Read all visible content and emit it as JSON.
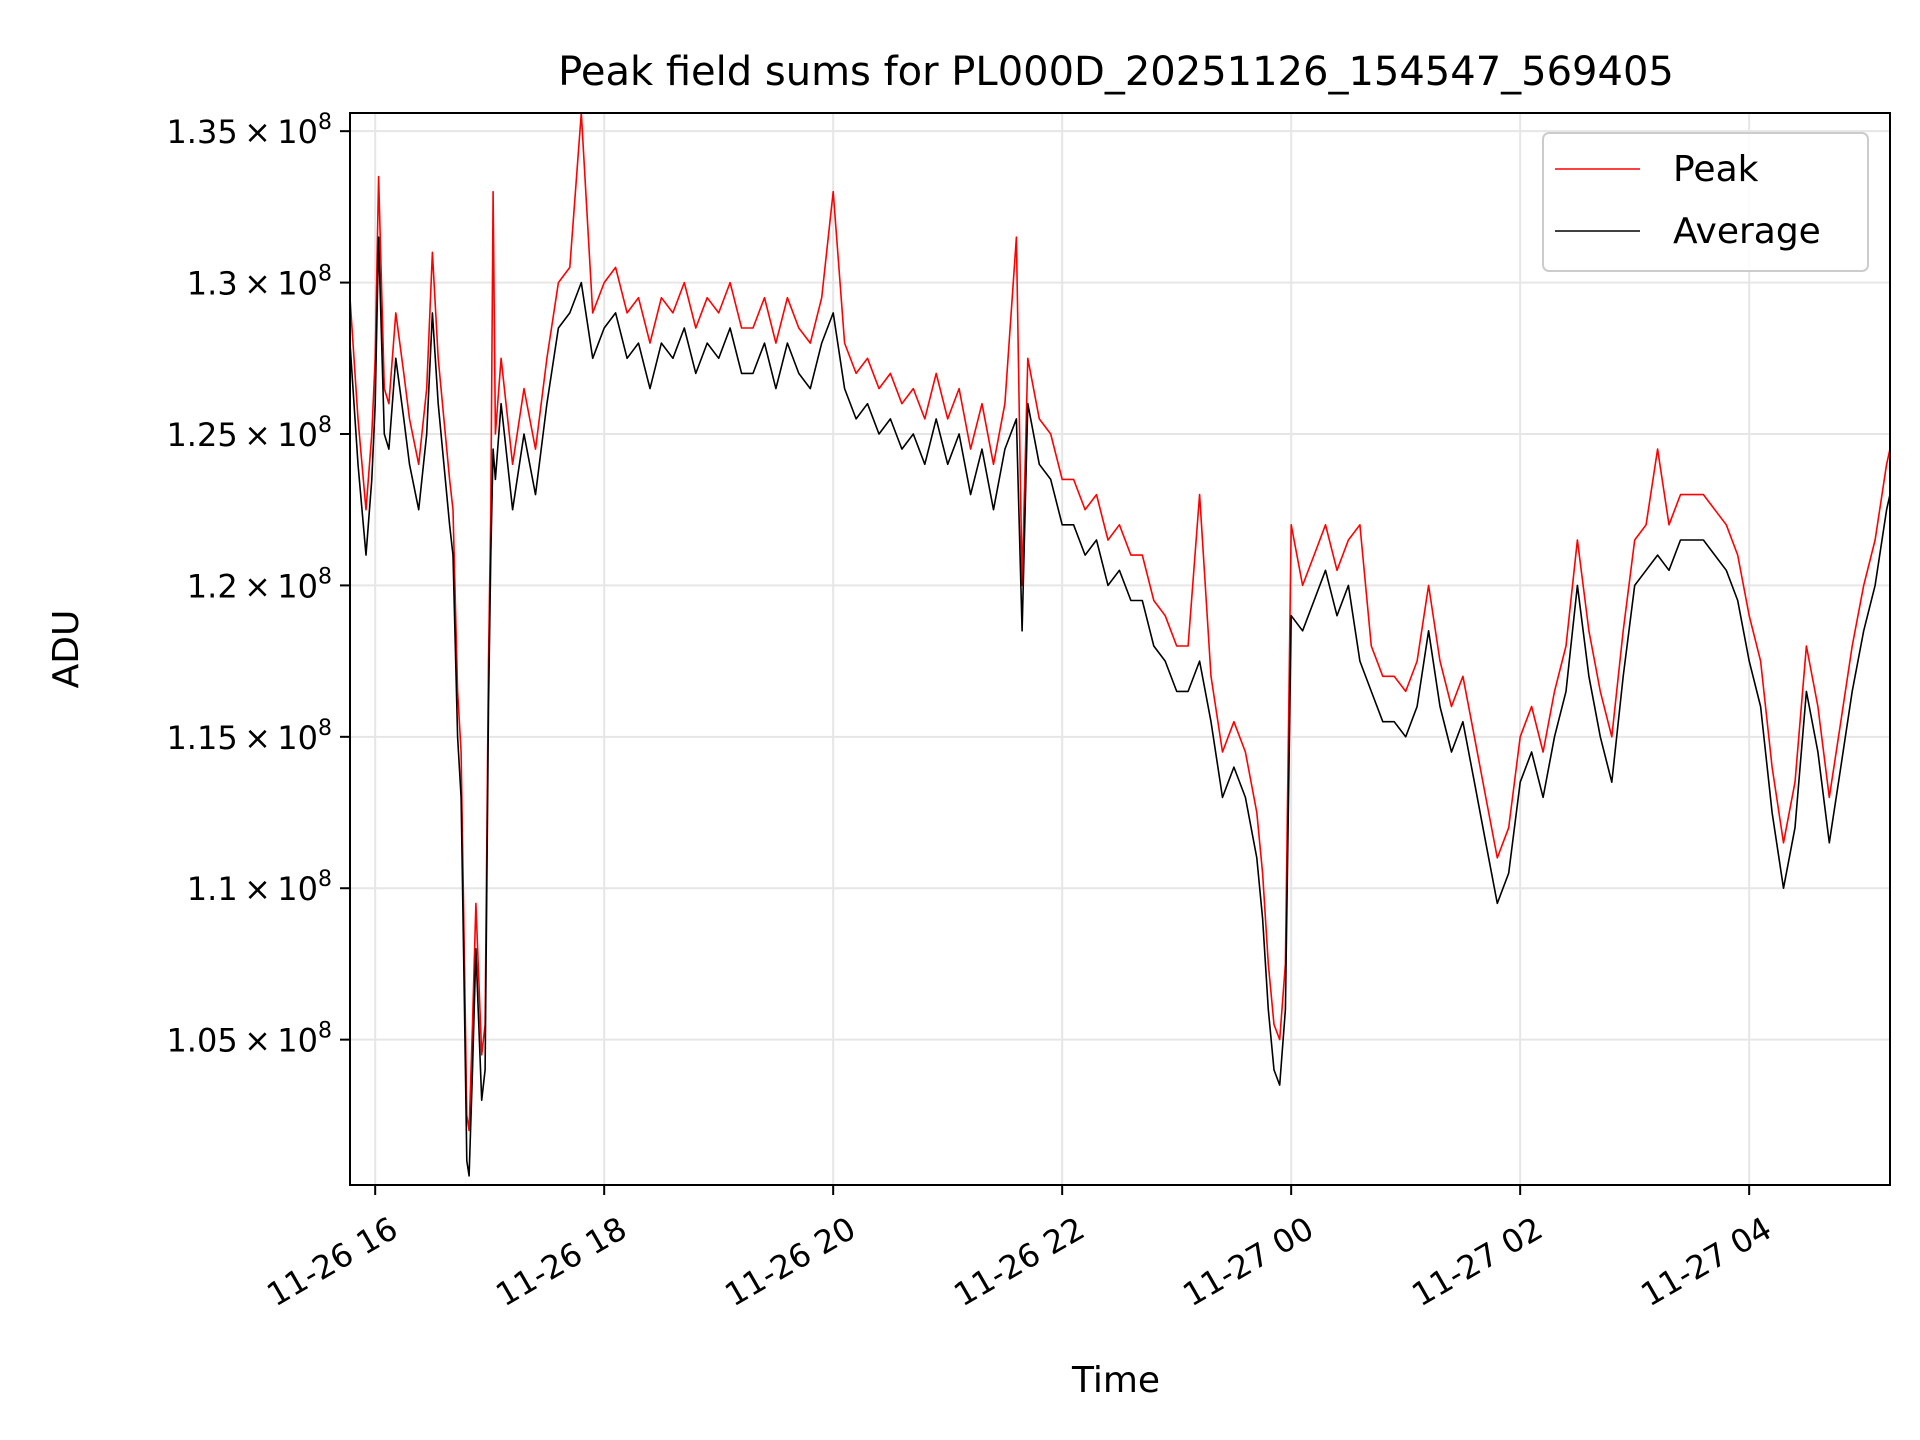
{
  "chart_data": {
    "type": "line",
    "title": "Peak field sums for PL000D_20251126_154547_569405",
    "xlabel": "Time",
    "ylabel": "ADU",
    "x_unit": "hours since 11-26 00:00",
    "xlim": [
      15.78,
      29.23
    ],
    "ylim": [
      100200000,
      135600000
    ],
    "x_ticks": [
      {
        "value": 16,
        "label": "11-26 16"
      },
      {
        "value": 18,
        "label": "11-26 18"
      },
      {
        "value": 20,
        "label": "11-26 20"
      },
      {
        "value": 22,
        "label": "11-26 22"
      },
      {
        "value": 24,
        "label": "11-27 00"
      },
      {
        "value": 26,
        "label": "11-27 02"
      },
      {
        "value": 28,
        "label": "11-27 04"
      }
    ],
    "y_ticks": [
      {
        "value": 105000000,
        "mantissa": "1.05",
        "exponent": "8"
      },
      {
        "value": 110000000,
        "mantissa": "1.1",
        "exponent": "8"
      },
      {
        "value": 115000000,
        "mantissa": "1.15",
        "exponent": "8"
      },
      {
        "value": 120000000,
        "mantissa": "1.2",
        "exponent": "8"
      },
      {
        "value": 125000000,
        "mantissa": "1.25",
        "exponent": "8"
      },
      {
        "value": 130000000,
        "mantissa": "1.3",
        "exponent": "8"
      },
      {
        "value": 135000000,
        "mantissa": "1.35",
        "exponent": "8"
      }
    ],
    "times_symbol": "×",
    "grid": true,
    "legend_position": "top-right",
    "legend": [
      {
        "name": "Peak",
        "color": "#ff0000"
      },
      {
        "name": "Average",
        "color": "#000000"
      }
    ],
    "series": [
      {
        "name": "Average",
        "color": "#000000",
        "x": [
          15.78,
          15.85,
          15.92,
          15.97,
          16.0,
          16.03,
          16.08,
          16.12,
          16.18,
          16.25,
          16.3,
          16.38,
          16.45,
          16.5,
          16.55,
          16.6,
          16.65,
          16.68,
          16.72,
          16.75,
          16.78,
          16.8,
          16.82,
          16.85,
          16.88,
          16.9,
          16.93,
          16.96,
          16.99,
          17.01,
          17.03,
          17.05,
          17.1,
          17.2,
          17.3,
          17.4,
          17.5,
          17.6,
          17.7,
          17.8,
          17.9,
          18.0,
          18.1,
          18.2,
          18.3,
          18.4,
          18.5,
          18.6,
          18.7,
          18.8,
          18.9,
          19.0,
          19.1,
          19.2,
          19.3,
          19.4,
          19.5,
          19.6,
          19.7,
          19.8,
          19.9,
          20.0,
          20.1,
          20.2,
          20.3,
          20.4,
          20.5,
          20.6,
          20.7,
          20.8,
          20.9,
          21.0,
          21.1,
          21.2,
          21.3,
          21.4,
          21.5,
          21.6,
          21.65,
          21.7,
          21.8,
          21.9,
          22.0,
          22.1,
          22.2,
          22.3,
          22.4,
          22.5,
          22.6,
          22.7,
          22.8,
          22.9,
          23.0,
          23.1,
          23.2,
          23.3,
          23.4,
          23.5,
          23.6,
          23.7,
          23.75,
          23.8,
          23.85,
          23.9,
          23.95,
          24.0,
          24.1,
          24.2,
          24.3,
          24.4,
          24.5,
          24.6,
          24.7,
          24.8,
          24.9,
          25.0,
          25.1,
          25.2,
          25.3,
          25.4,
          25.5,
          25.6,
          25.7,
          25.8,
          25.9,
          26.0,
          26.1,
          26.2,
          26.3,
          26.4,
          26.5,
          26.6,
          26.7,
          26.8,
          26.9,
          27.0,
          27.1,
          27.2,
          27.3,
          27.4,
          27.5,
          27.6,
          27.7,
          27.8,
          27.9,
          28.0,
          28.1,
          28.2,
          28.3,
          28.4,
          28.5,
          28.6,
          28.7,
          28.8,
          28.9,
          29.0,
          29.1,
          29.2,
          29.23
        ],
        "values": [
          128000000,
          124000000,
          121000000,
          123500000,
          126000000,
          131500000,
          125000000,
          124500000,
          127500000,
          125500000,
          124000000,
          122500000,
          125000000,
          129000000,
          126000000,
          124000000,
          122000000,
          121000000,
          115000000,
          113000000,
          106000000,
          101000000,
          100500000,
          104000000,
          108000000,
          106000000,
          103000000,
          104000000,
          116000000,
          121000000,
          124500000,
          123500000,
          126000000,
          122500000,
          125000000,
          123000000,
          126000000,
          128500000,
          129000000,
          130000000,
          127500000,
          128500000,
          129000000,
          127500000,
          128000000,
          126500000,
          128000000,
          127500000,
          128500000,
          127000000,
          128000000,
          127500000,
          128500000,
          127000000,
          127000000,
          128000000,
          126500000,
          128000000,
          127000000,
          126500000,
          128000000,
          129000000,
          126500000,
          125500000,
          126000000,
          125000000,
          125500000,
          124500000,
          125000000,
          124000000,
          125500000,
          124000000,
          125000000,
          123000000,
          124500000,
          122500000,
          124500000,
          125500000,
          118500000,
          126000000,
          124000000,
          123500000,
          122000000,
          122000000,
          121000000,
          121500000,
          120000000,
          120500000,
          119500000,
          119500000,
          118000000,
          117500000,
          116500000,
          116500000,
          117500000,
          115500000,
          113000000,
          114000000,
          113000000,
          111000000,
          109000000,
          106000000,
          104000000,
          103500000,
          106000000,
          119000000,
          118500000,
          119500000,
          120500000,
          119000000,
          120000000,
          117500000,
          116500000,
          115500000,
          115500000,
          115000000,
          116000000,
          118500000,
          116000000,
          114500000,
          115500000,
          113500000,
          111500000,
          109500000,
          110500000,
          113500000,
          114500000,
          113000000,
          115000000,
          116500000,
          120000000,
          117000000,
          115000000,
          113500000,
          117000000,
          120000000,
          120500000,
          121000000,
          120500000,
          121500000,
          121500000,
          121500000,
          121000000,
          120500000,
          119500000,
          117500000,
          116000000,
          112500000,
          110000000,
          112000000,
          116500000,
          114500000,
          111500000,
          114000000,
          116500000,
          118500000,
          120000000,
          122500000,
          123000000
        ]
      },
      {
        "name": "Peak",
        "color": "#ff0000",
        "x": [
          15.78,
          15.85,
          15.92,
          15.97,
          16.0,
          16.03,
          16.08,
          16.12,
          16.18,
          16.25,
          16.3,
          16.38,
          16.45,
          16.5,
          16.55,
          16.6,
          16.65,
          16.68,
          16.72,
          16.75,
          16.78,
          16.8,
          16.82,
          16.85,
          16.88,
          16.9,
          16.93,
          16.96,
          16.99,
          17.01,
          17.03,
          17.05,
          17.1,
          17.2,
          17.3,
          17.4,
          17.5,
          17.6,
          17.7,
          17.8,
          17.9,
          18.0,
          18.1,
          18.2,
          18.3,
          18.4,
          18.5,
          18.6,
          18.7,
          18.8,
          18.9,
          19.0,
          19.1,
          19.2,
          19.3,
          19.4,
          19.5,
          19.6,
          19.7,
          19.8,
          19.9,
          20.0,
          20.1,
          20.2,
          20.3,
          20.4,
          20.5,
          20.6,
          20.7,
          20.8,
          20.9,
          21.0,
          21.1,
          21.2,
          21.3,
          21.4,
          21.5,
          21.6,
          21.65,
          21.7,
          21.8,
          21.9,
          22.0,
          22.1,
          22.2,
          22.3,
          22.4,
          22.5,
          22.6,
          22.7,
          22.8,
          22.9,
          23.0,
          23.1,
          23.2,
          23.3,
          23.4,
          23.5,
          23.6,
          23.7,
          23.75,
          23.8,
          23.85,
          23.9,
          23.95,
          24.0,
          24.1,
          24.2,
          24.3,
          24.4,
          24.5,
          24.6,
          24.7,
          24.8,
          24.9,
          25.0,
          25.1,
          25.2,
          25.3,
          25.4,
          25.5,
          25.6,
          25.7,
          25.8,
          25.9,
          26.0,
          26.1,
          26.2,
          26.3,
          26.4,
          26.5,
          26.6,
          26.7,
          26.8,
          26.9,
          27.0,
          27.1,
          27.2,
          27.3,
          27.4,
          27.5,
          27.6,
          27.7,
          27.8,
          27.9,
          28.0,
          28.1,
          28.2,
          28.3,
          28.4,
          28.5,
          28.6,
          28.7,
          28.8,
          28.9,
          29.0,
          29.1,
          29.2,
          29.23
        ],
        "values": [
          129500000,
          125500000,
          122500000,
          125000000,
          127500000,
          133500000,
          126500000,
          126000000,
          129000000,
          127000000,
          125500000,
          124000000,
          126500000,
          131000000,
          127500000,
          125500000,
          123500000,
          122500000,
          116500000,
          114500000,
          107500000,
          102500000,
          102000000,
          105500000,
          109500000,
          107500000,
          104500000,
          105500000,
          117500000,
          122500000,
          133000000,
          125000000,
          127500000,
          124000000,
          126500000,
          124500000,
          127500000,
          130000000,
          130500000,
          135600000,
          129000000,
          130000000,
          130500000,
          129000000,
          129500000,
          128000000,
          129500000,
          129000000,
          130000000,
          128500000,
          129500000,
          129000000,
          130000000,
          128500000,
          128500000,
          129500000,
          128000000,
          129500000,
          128500000,
          128000000,
          129500000,
          133000000,
          128000000,
          127000000,
          127500000,
          126500000,
          127000000,
          126000000,
          126500000,
          125500000,
          127000000,
          125500000,
          126500000,
          124500000,
          126000000,
          124000000,
          126000000,
          131500000,
          120000000,
          127500000,
          125500000,
          125000000,
          123500000,
          123500000,
          122500000,
          123000000,
          121500000,
          122000000,
          121000000,
          121000000,
          119500000,
          119000000,
          118000000,
          118000000,
          123000000,
          117000000,
          114500000,
          115500000,
          114500000,
          112500000,
          110500000,
          107500000,
          105500000,
          105000000,
          107500000,
          122000000,
          120000000,
          121000000,
          122000000,
          120500000,
          121500000,
          122000000,
          118000000,
          117000000,
          117000000,
          116500000,
          117500000,
          120000000,
          117500000,
          116000000,
          117000000,
          115000000,
          113000000,
          111000000,
          112000000,
          115000000,
          116000000,
          114500000,
          116500000,
          118000000,
          121500000,
          118500000,
          116500000,
          115000000,
          118500000,
          121500000,
          122000000,
          124500000,
          122000000,
          123000000,
          123000000,
          123000000,
          122500000,
          122000000,
          121000000,
          119000000,
          117500000,
          114000000,
          111500000,
          113500000,
          118000000,
          116000000,
          113000000,
          115500000,
          118000000,
          120000000,
          121500000,
          124000000,
          124500000
        ]
      }
    ]
  }
}
